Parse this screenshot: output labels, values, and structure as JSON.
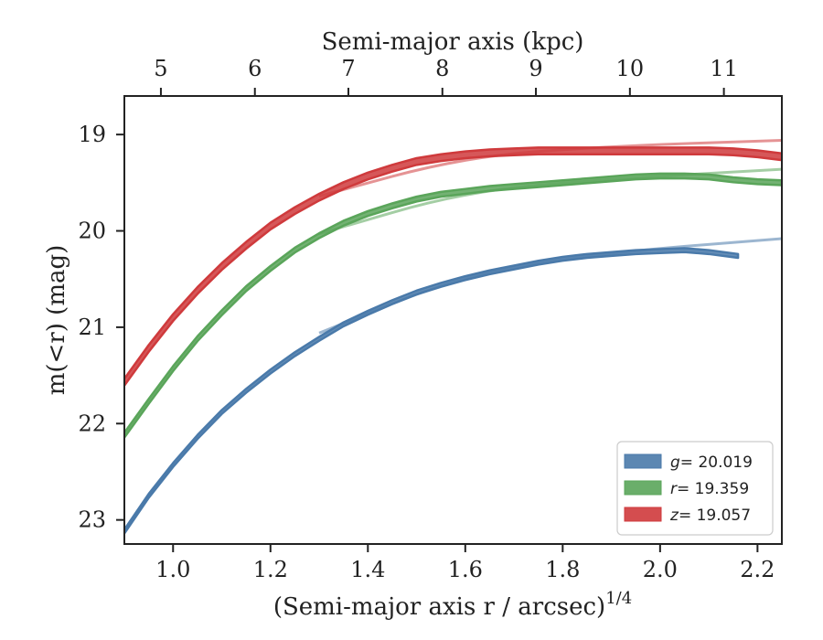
{
  "chart_data": {
    "type": "line",
    "xlabel": "(Semi-major axis r / arcsec)",
    "xlabel_sup": "1/4",
    "ylabel": "m(<r) (mag)",
    "top_xlabel": "Semi-major axis (kpc)",
    "xlim": [
      0.9,
      2.25
    ],
    "ylim": [
      23.25,
      18.6
    ],
    "y_inverted": true,
    "x_ticks": [
      1.0,
      1.2,
      1.4,
      1.6,
      1.8,
      2.0,
      2.2
    ],
    "x_tick_labels": [
      "1.0",
      "1.2",
      "1.4",
      "1.6",
      "1.8",
      "2.0",
      "2.2"
    ],
    "y_ticks": [
      19,
      20,
      21,
      22,
      23
    ],
    "y_tick_labels": [
      "19",
      "20",
      "21",
      "22",
      "23"
    ],
    "top_ticks_kpc": [
      5,
      6,
      7,
      8,
      9,
      10,
      11
    ],
    "top_tick_labels": [
      "5",
      "6",
      "7",
      "8",
      "9",
      "10",
      "11"
    ],
    "top_tick_positions": [
      0.975,
      1.168,
      1.36,
      1.553,
      1.745,
      1.938,
      2.131
    ],
    "legend_position": "lower-right",
    "series": [
      {
        "name": "g",
        "label_value": "= 20.019",
        "color": "#4a7aaa",
        "band_width": 0.04,
        "x": [
          0.9,
          0.95,
          1.0,
          1.05,
          1.1,
          1.15,
          1.2,
          1.25,
          1.3,
          1.35,
          1.4,
          1.45,
          1.5,
          1.55,
          1.6,
          1.65,
          1.7,
          1.75,
          1.8,
          1.85,
          1.9,
          1.95,
          2.0,
          2.05,
          2.1,
          2.16
        ],
        "y": [
          23.12,
          22.75,
          22.43,
          22.14,
          21.88,
          21.66,
          21.46,
          21.28,
          21.12,
          20.97,
          20.85,
          20.74,
          20.64,
          20.56,
          20.49,
          20.43,
          20.38,
          20.33,
          20.29,
          20.26,
          20.24,
          20.22,
          20.21,
          20.2,
          20.22,
          20.26
        ],
        "model_x": [
          1.3,
          1.6,
          1.9,
          2.25
        ],
        "model_y": [
          21.06,
          20.45,
          20.22,
          20.08
        ]
      },
      {
        "name": "r",
        "label_value": "= 19.359",
        "color": "#5aa55a",
        "band_width": 0.05,
        "x": [
          0.9,
          0.95,
          1.0,
          1.05,
          1.1,
          1.15,
          1.2,
          1.25,
          1.3,
          1.35,
          1.4,
          1.45,
          1.5,
          1.55,
          1.6,
          1.65,
          1.7,
          1.75,
          1.8,
          1.85,
          1.9,
          1.95,
          2.0,
          2.05,
          2.1,
          2.15,
          2.2,
          2.25
        ],
        "y": [
          22.12,
          21.77,
          21.43,
          21.12,
          20.85,
          20.6,
          20.39,
          20.2,
          20.05,
          19.92,
          19.82,
          19.74,
          19.67,
          19.62,
          19.59,
          19.56,
          19.54,
          19.52,
          19.5,
          19.48,
          19.46,
          19.44,
          19.43,
          19.43,
          19.44,
          19.47,
          19.49,
          19.5
        ],
        "model_x": [
          1.3,
          1.6,
          1.9,
          2.25
        ],
        "model_y": [
          20.03,
          19.59,
          19.46,
          19.36
        ]
      },
      {
        "name": "z",
        "label_value": "= 19.057",
        "color": "#cf3a3c",
        "band_width": 0.07,
        "x": [
          0.9,
          0.95,
          1.0,
          1.05,
          1.1,
          1.15,
          1.2,
          1.25,
          1.3,
          1.35,
          1.4,
          1.45,
          1.5,
          1.55,
          1.6,
          1.65,
          1.7,
          1.75,
          1.8,
          1.85,
          1.9,
          1.95,
          2.0,
          2.05,
          2.1,
          2.15,
          2.2,
          2.25
        ],
        "y": [
          21.57,
          21.22,
          20.9,
          20.62,
          20.37,
          20.15,
          19.95,
          19.79,
          19.65,
          19.53,
          19.43,
          19.35,
          19.28,
          19.24,
          19.21,
          19.19,
          19.18,
          19.17,
          19.17,
          19.17,
          19.17,
          19.17,
          19.17,
          19.17,
          19.17,
          19.18,
          19.2,
          19.23
        ],
        "model_x": [
          1.3,
          1.6,
          1.9,
          2.25
        ],
        "model_y": [
          19.64,
          19.23,
          19.12,
          19.06
        ]
      }
    ]
  }
}
